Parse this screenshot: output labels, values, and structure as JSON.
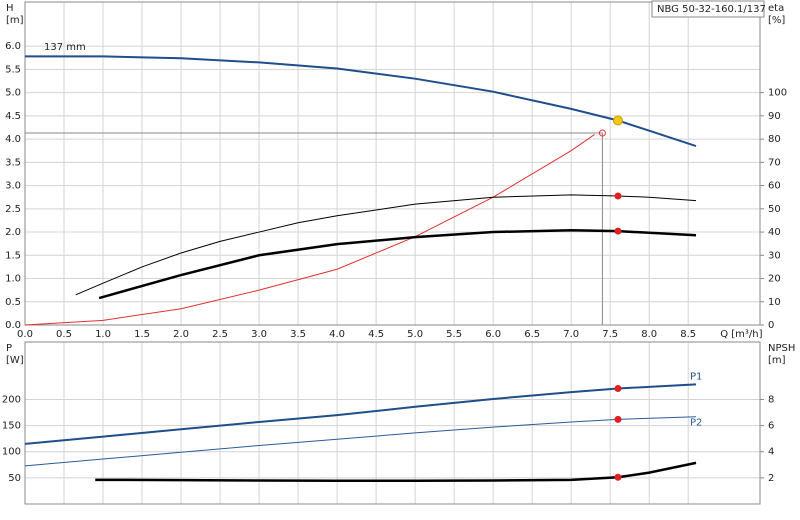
{
  "chart_data": [
    {
      "type": "line",
      "label": "NBG 50-32-160.1/137",
      "annotation": "137 mm",
      "ylabel": [
        "H",
        "[m]"
      ],
      "y2label": [
        "eta",
        "[%]"
      ],
      "xlabel": "Q [m³/h]",
      "xlim": [
        0,
        9.42
      ],
      "ylim": [
        0,
        6.95
      ],
      "y2lim": [
        0,
        139
      ],
      "xticks": [
        {
          "value": 0,
          "label": "0.0"
        },
        {
          "value": 0.5,
          "label": "0.5"
        },
        {
          "value": 1,
          "label": "1.0"
        },
        {
          "value": 1.5,
          "label": "1.5"
        },
        {
          "value": 2,
          "label": "2.0"
        },
        {
          "value": 2.5,
          "label": "2.5"
        },
        {
          "value": 3,
          "label": "3.0"
        },
        {
          "value": 3.5,
          "label": "3.5"
        },
        {
          "value": 4,
          "label": "4.0"
        },
        {
          "value": 4.5,
          "label": "4.5"
        },
        {
          "value": 5,
          "label": "5.0"
        },
        {
          "value": 5.5,
          "label": "5.5"
        },
        {
          "value": 6,
          "label": "6.0"
        },
        {
          "value": 6.5,
          "label": "6.5"
        },
        {
          "value": 7,
          "label": "7.0"
        },
        {
          "value": 7.5,
          "label": "7.5"
        },
        {
          "value": 8,
          "label": "8.0"
        },
        {
          "value": 8.5,
          "label": "8.5"
        }
      ],
      "yticks": [
        {
          "value": 0,
          "label": "0.0"
        },
        {
          "value": 0.5,
          "label": "0.5"
        },
        {
          "value": 1,
          "label": "1.0"
        },
        {
          "value": 1.5,
          "label": "1.5"
        },
        {
          "value": 2,
          "label": "2.0"
        },
        {
          "value": 2.5,
          "label": "2.5"
        },
        {
          "value": 3,
          "label": "3.0"
        },
        {
          "value": 3.5,
          "label": "3.5"
        },
        {
          "value": 4,
          "label": "4.0"
        },
        {
          "value": 4.5,
          "label": "4.5"
        },
        {
          "value": 5,
          "label": "5.0"
        },
        {
          "value": 5.5,
          "label": "5.5"
        },
        {
          "value": 6,
          "label": "6.0"
        }
      ],
      "y2ticks": [
        0,
        10,
        20,
        30,
        40,
        50,
        60,
        70,
        80,
        90,
        100
      ],
      "grid": true,
      "series": [
        {
          "color": "#1f4e8c",
          "width": 2,
          "x": [
            0,
            1,
            2,
            3,
            4,
            5,
            6,
            7,
            7.6,
            8,
            8.6
          ],
          "values": [
            5.78,
            5.78,
            5.74,
            5.65,
            5.52,
            5.3,
            5.02,
            4.65,
            4.4,
            4.18,
            3.85
          ]
        },
        {
          "color": "#e03030",
          "width": 1,
          "x": [
            0,
            1,
            2,
            3,
            4,
            5,
            6,
            7,
            7.3
          ],
          "values": [
            0,
            0.1,
            0.35,
            0.75,
            1.2,
            1.9,
            2.75,
            3.75,
            4.1
          ]
        },
        {
          "color": "#000000",
          "width": 1,
          "axis": "y2",
          "x": [
            0.65,
            1,
            1.5,
            2,
            2.5,
            3,
            3.5,
            4,
            5,
            6,
            7,
            7.6,
            8,
            8.6
          ],
          "values": [
            13,
            18,
            25,
            31,
            36,
            40,
            44,
            47,
            52,
            55,
            56,
            55.5,
            55,
            53.5
          ]
        },
        {
          "color": "#000000",
          "width": 2.5,
          "axis": "y2",
          "x": [
            0.95,
            2,
            3,
            4,
            5,
            6,
            7,
            7.6,
            8.6
          ],
          "values": [
            11.6,
            21.5,
            30,
            34.8,
            37.8,
            40,
            40.8,
            40.4,
            38.6
          ]
        }
      ],
      "markers": [
        {
          "x": 7.6,
          "y": 4.4,
          "color": "#f5c518"
        },
        {
          "x": 7.6,
          "y": 55.5,
          "color": "#e02020",
          "axis": "y2"
        },
        {
          "x": 7.6,
          "y": 40.4,
          "color": "#e02020",
          "axis": "y2"
        }
      ],
      "reference": {
        "x": 7.4,
        "y": 4.13
      }
    },
    {
      "type": "line",
      "ylabel": [
        "P",
        "[W]"
      ],
      "y2label": [
        "NPSH",
        "[m]"
      ],
      "xlim": [
        0,
        9.42
      ],
      "ylim": [
        0,
        310
      ],
      "y2lim": [
        0,
        12.4
      ],
      "xticks": [
        0,
        0.5,
        1,
        1.5,
        2,
        2.5,
        3,
        3.5,
        4,
        4.5,
        5,
        5.5,
        6,
        6.5,
        7,
        7.5,
        8,
        8.5
      ],
      "yticks": [
        50,
        100,
        150,
        200
      ],
      "y2ticks": [
        2,
        4,
        6,
        8
      ],
      "grid": true,
      "series": [
        {
          "name": "P1",
          "color": "#1f4e8c",
          "width": 2,
          "x": [
            0,
            1,
            2,
            3,
            4,
            5,
            6,
            7,
            7.6,
            8.6
          ],
          "values": [
            115,
            129,
            143,
            157,
            170,
            186,
            201,
            214,
            221,
            229
          ]
        },
        {
          "name": "P2",
          "color": "#2a5a9a",
          "width": 1,
          "x": [
            0,
            1,
            2,
            3,
            4,
            5,
            6,
            7,
            7.6,
            8.6
          ],
          "values": [
            73,
            86,
            99,
            112,
            124,
            136,
            147,
            157,
            162,
            167
          ]
        },
        {
          "color": "#000000",
          "width": 2.5,
          "axis": "y2",
          "x": [
            0.9,
            2,
            3,
            4,
            5,
            6,
            7,
            7.6,
            8,
            8.6
          ],
          "values": [
            1.85,
            1.83,
            1.8,
            1.78,
            1.78,
            1.8,
            1.85,
            2.05,
            2.4,
            3.15
          ]
        }
      ],
      "markers": [
        {
          "x": 7.6,
          "y": 221,
          "color": "#e02020"
        },
        {
          "x": 7.6,
          "y": 162,
          "color": "#e02020"
        },
        {
          "x": 7.6,
          "y": 2.05,
          "color": "#e02020",
          "axis": "y2"
        }
      ]
    }
  ]
}
